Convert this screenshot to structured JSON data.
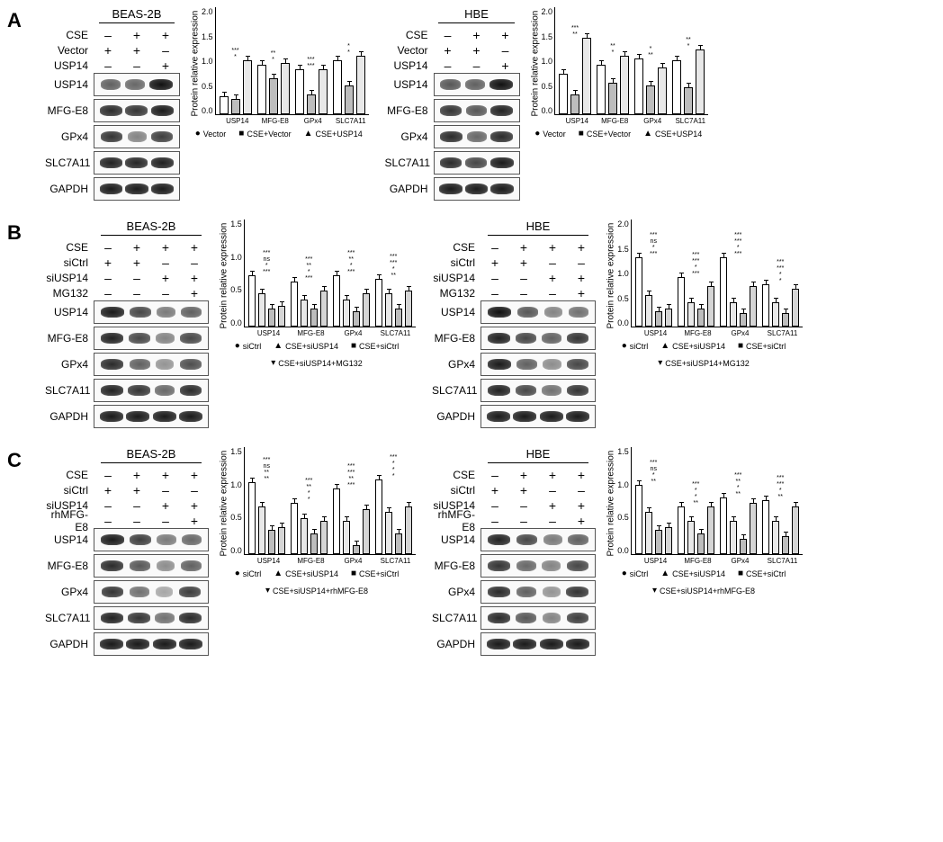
{
  "panels": {
    "A": {
      "cells": [
        "BEAS-2B",
        "HBE"
      ],
      "conditions": [
        {
          "label": "CSE",
          "vals": [
            "–",
            "+",
            "+"
          ]
        },
        {
          "label": "Vector",
          "vals": [
            "+",
            "+",
            "–"
          ]
        },
        {
          "label": "USP14",
          "vals": [
            "–",
            "–",
            "+"
          ]
        }
      ],
      "proteins": [
        "USP14",
        "MFG-E8",
        "GPx4",
        "SLC7A11",
        "GAPDH"
      ],
      "band_intensities": {
        "BEAS-2B": [
          [
            0.55,
            0.5,
            1.0
          ],
          [
            0.85,
            0.8,
            0.95
          ],
          [
            0.8,
            0.35,
            0.75
          ],
          [
            0.9,
            0.88,
            0.92
          ],
          [
            0.95,
            0.95,
            0.95
          ]
        ],
        "HBE": [
          [
            0.6,
            0.55,
            1.0
          ],
          [
            0.8,
            0.6,
            0.9
          ],
          [
            0.85,
            0.5,
            0.85
          ],
          [
            0.85,
            0.7,
            0.95
          ],
          [
            0.95,
            0.95,
            0.95
          ]
        ]
      },
      "chart": {
        "ylabel": "Protein relative expression",
        "ymax": 2.0,
        "ytick_step": 0.5,
        "categories": [
          "USP14",
          "MFG-E8",
          "GPx4",
          "SLC7A11"
        ],
        "series": [
          {
            "label": "Vector",
            "shape": "●",
            "fill": "#ffffff"
          },
          {
            "label": "CSE+Vector",
            "shape": "■",
            "fill": "#bdbdbd"
          },
          {
            "label": "CSE+USP14",
            "shape": "▲",
            "fill": "#e8e8e8"
          }
        ],
        "values": {
          "BEAS-2B": [
            [
              0.4,
              0.35,
              1.2
            ],
            [
              1.1,
              0.8,
              1.15
            ],
            [
              1.0,
              0.45,
              1.0
            ],
            [
              1.2,
              0.65,
              1.3
            ]
          ],
          "HBE": [
            [
              0.9,
              0.45,
              1.7
            ],
            [
              1.1,
              0.7,
              1.3
            ],
            [
              1.25,
              0.65,
              1.05
            ],
            [
              1.2,
              0.6,
              1.45
            ]
          ]
        },
        "sig": {
          "BEAS-2B": [
            [
              "*",
              "***"
            ],
            [
              "*",
              "**"
            ],
            [
              "***",
              "***"
            ],
            [
              "*",
              "*"
            ]
          ],
          "HBE": [
            [
              "**",
              "***"
            ],
            [
              "*",
              "**"
            ],
            [
              "**",
              "*"
            ],
            [
              "*",
              "**"
            ]
          ]
        }
      }
    },
    "B": {
      "cells": [
        "BEAS-2B",
        "HBE"
      ],
      "conditions": [
        {
          "label": "CSE",
          "vals": [
            "–",
            "+",
            "+",
            "+"
          ]
        },
        {
          "label": "siCtrl",
          "vals": [
            "+",
            "+",
            "–",
            "–"
          ]
        },
        {
          "label": "siUSP14",
          "vals": [
            "–",
            "–",
            "+",
            "+"
          ]
        },
        {
          "label": "MG132",
          "vals": [
            "–",
            "–",
            "–",
            "+"
          ]
        }
      ],
      "proteins": [
        "USP14",
        "MFG-E8",
        "GPx4",
        "SLC7A11",
        "GAPDH"
      ],
      "band_intensities": {
        "BEAS-2B": [
          [
            0.95,
            0.7,
            0.4,
            0.55
          ],
          [
            0.9,
            0.7,
            0.35,
            0.7
          ],
          [
            0.85,
            0.55,
            0.25,
            0.65
          ],
          [
            0.9,
            0.8,
            0.5,
            0.85
          ],
          [
            0.95,
            0.95,
            0.95,
            0.95
          ]
        ],
        "HBE": [
          [
            1.0,
            0.6,
            0.35,
            0.45
          ],
          [
            0.9,
            0.7,
            0.55,
            0.8
          ],
          [
            0.95,
            0.55,
            0.3,
            0.7
          ],
          [
            0.9,
            0.7,
            0.45,
            0.8
          ],
          [
            0.95,
            0.95,
            0.95,
            0.95
          ]
        ]
      },
      "chart": {
        "ylabel": "Protein relative expression",
        "ymax": 1.5,
        "ytick_step": 0.5,
        "ymax_hbe": 2.0,
        "categories": [
          "USP14",
          "MFG-E8",
          "GPx4",
          "SLC7A11"
        ],
        "series": [
          {
            "label": "siCtrl",
            "shape": "●",
            "fill": "#ffffff"
          },
          {
            "label": "CSE+siUSP14",
            "shape": "▲",
            "fill": "#e8e8e8"
          },
          {
            "label": "CSE+siCtrl",
            "shape": "■",
            "fill": "#bdbdbd"
          },
          {
            "label": "CSE+siUSP14+MG132",
            "shape": "▾",
            "fill": "#d5d5d5"
          }
        ],
        "values": {
          "BEAS-2B": [
            [
              0.85,
              0.55,
              0.3,
              0.35
            ],
            [
              0.75,
              0.45,
              0.3,
              0.6
            ],
            [
              0.85,
              0.45,
              0.25,
              0.55
            ],
            [
              0.8,
              0.55,
              0.3,
              0.6
            ]
          ],
          "HBE": [
            [
              1.55,
              0.7,
              0.35,
              0.4
            ],
            [
              1.1,
              0.55,
              0.4,
              0.9
            ],
            [
              1.55,
              0.55,
              0.3,
              0.9
            ],
            [
              0.95,
              0.55,
              0.3,
              0.85
            ]
          ]
        },
        "sig": {
          "BEAS-2B": [
            [
              "***",
              "*",
              "ns",
              "***"
            ],
            [
              "***",
              "*",
              "**",
              "***"
            ],
            [
              "***",
              "*",
              "**",
              "***"
            ],
            [
              "**",
              "*",
              "***",
              "***"
            ]
          ],
          "HBE": [
            [
              "***",
              "*",
              "ns",
              "***"
            ],
            [
              "***",
              "*",
              "***",
              "***"
            ],
            [
              "***",
              "*",
              "***",
              "***"
            ],
            [
              "*",
              "*",
              "***",
              "***"
            ]
          ]
        }
      }
    },
    "C": {
      "cells": [
        "BEAS-2B",
        "HBE"
      ],
      "conditions": [
        {
          "label": "CSE",
          "vals": [
            "–",
            "+",
            "+",
            "+"
          ]
        },
        {
          "label": "siCtrl",
          "vals": [
            "+",
            "+",
            "–",
            "–"
          ]
        },
        {
          "label": "siUSP14",
          "vals": [
            "–",
            "–",
            "+",
            "+"
          ]
        },
        {
          "label": "rhMFG-E8",
          "vals": [
            "–",
            "–",
            "–",
            "+"
          ]
        }
      ],
      "proteins": [
        "USP14",
        "MFG-E8",
        "GPx4",
        "SLC7A11",
        "GAPDH"
      ],
      "band_intensities": {
        "BEAS-2B": [
          [
            0.95,
            0.75,
            0.4,
            0.5
          ],
          [
            0.85,
            0.6,
            0.3,
            0.55
          ],
          [
            0.8,
            0.45,
            0.15,
            0.75
          ],
          [
            0.9,
            0.8,
            0.45,
            0.85
          ],
          [
            0.95,
            0.95,
            0.95,
            0.95
          ]
        ],
        "HBE": [
          [
            0.9,
            0.7,
            0.4,
            0.55
          ],
          [
            0.8,
            0.5,
            0.35,
            0.7
          ],
          [
            0.85,
            0.55,
            0.25,
            0.8
          ],
          [
            0.85,
            0.6,
            0.35,
            0.75
          ],
          [
            0.95,
            0.95,
            0.95,
            0.95
          ]
        ]
      },
      "chart": {
        "ylabel": "Protein relative expression",
        "ymax": 1.5,
        "ytick_step": 0.5,
        "categories": [
          "USP14",
          "MFG-E8",
          "GPx4",
          "SLC7A11"
        ],
        "series": [
          {
            "label": "siCtrl",
            "shape": "●",
            "fill": "#ffffff"
          },
          {
            "label": "CSE+siUSP14",
            "shape": "▲",
            "fill": "#e8e8e8"
          },
          {
            "label": "CSE+siCtrl",
            "shape": "■",
            "fill": "#bdbdbd"
          },
          {
            "label": "CSE+siUSP14+rhMFG-E8",
            "shape": "▾",
            "fill": "#d5d5d5"
          }
        ],
        "values": {
          "BEAS-2B": [
            [
              1.2,
              0.8,
              0.4,
              0.45
            ],
            [
              0.85,
              0.6,
              0.35,
              0.55
            ],
            [
              1.1,
              0.55,
              0.15,
              0.75
            ],
            [
              1.25,
              0.7,
              0.35,
              0.8
            ]
          ],
          "HBE": [
            [
              1.15,
              0.7,
              0.4,
              0.45
            ],
            [
              0.8,
              0.55,
              0.35,
              0.8
            ],
            [
              0.95,
              0.55,
              0.25,
              0.85
            ],
            [
              0.9,
              0.55,
              0.3,
              0.8
            ]
          ]
        },
        "sig": {
          "BEAS-2B": [
            [
              "**",
              "**",
              "ns",
              "***"
            ],
            [
              "*",
              "*",
              "**",
              "***"
            ],
            [
              "***",
              "**",
              "***",
              "***"
            ],
            [
              "*",
              "*",
              "*",
              "***"
            ]
          ],
          "HBE": [
            [
              "**",
              "*",
              "ns",
              "***"
            ],
            [
              "**",
              "*",
              "*",
              "***"
            ],
            [
              "**",
              "*",
              "**",
              "***"
            ],
            [
              "**",
              "*",
              "***",
              "***"
            ]
          ]
        }
      }
    }
  },
  "colors": {
    "band_light": "#777777",
    "band_dark": "#111111",
    "bar_border": "#000000",
    "axis": "#000000"
  }
}
